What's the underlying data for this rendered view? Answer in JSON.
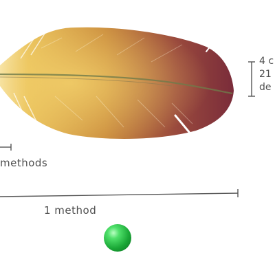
{
  "labels": {
    "small_methods": "methods",
    "one_method": "1 method"
  },
  "side_note": {
    "line1": "4 c",
    "line2": "21",
    "line3": "de"
  },
  "colors": {
    "feather_light": "#e0b54a",
    "feather_dark": "#7a2c3a",
    "ball": "#1aa736",
    "line": "#555555"
  }
}
